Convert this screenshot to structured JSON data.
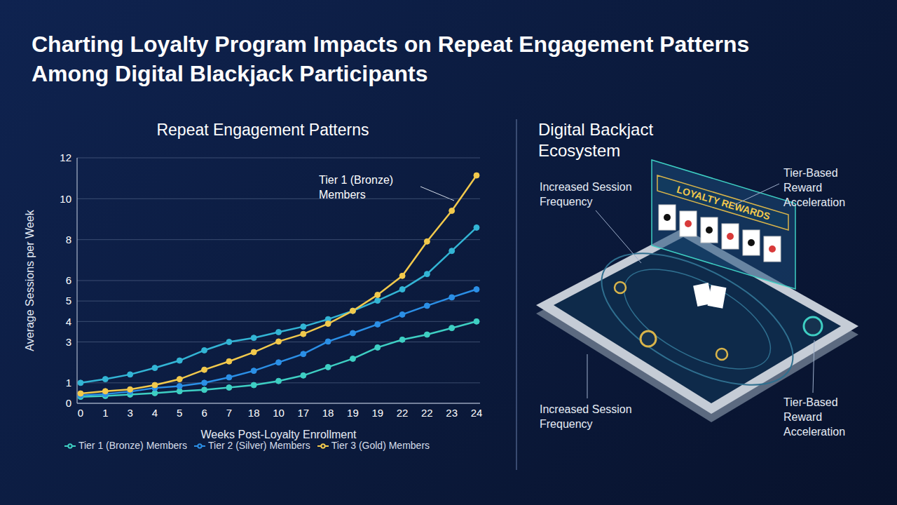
{
  "title": "Charting Loyalty Program Impacts on Repeat Engagement Patterns Among Digital Blackjack Participants",
  "chart_data": {
    "type": "line",
    "title": "Repeat Engagement Patterns",
    "x_label": "Weeks Post-Loyalty Enrollment",
    "y_label": "Average Sessions per Week",
    "categories": [
      "0",
      "1",
      "3",
      "4",
      "5",
      "6",
      "7",
      "18",
      "10",
      "17",
      "18",
      "19",
      "19",
      "22",
      "22",
      "23",
      "24"
    ],
    "series": [
      {
        "color": "#33b5d5",
        "marker": "circle",
        "values": [
          1.0,
          1.18,
          1.41,
          1.73,
          2.09,
          2.59,
          3.0,
          3.2,
          3.48,
          3.75,
          4.11,
          4.52,
          5.02,
          5.57,
          6.32,
          7.45,
          8.59
        ]
      },
      {
        "name": "Tier 1 (Bronze) Members",
        "color": "#3ecfc3",
        "marker": "circle",
        "values": [
          0.32,
          0.36,
          0.43,
          0.5,
          0.59,
          0.66,
          0.77,
          0.89,
          1.09,
          1.36,
          1.77,
          2.18,
          2.73,
          3.11,
          3.36,
          3.68,
          4.0
        ]
      },
      {
        "name": "Tier 2 (Silver) Members",
        "color": "#2b8fe6",
        "marker": "circle",
        "values": [
          0.39,
          0.45,
          0.57,
          0.75,
          0.84,
          1.0,
          1.27,
          1.59,
          2.0,
          2.41,
          3.02,
          3.43,
          3.86,
          4.34,
          4.77,
          5.18,
          5.57
        ]
      },
      {
        "name": "Tier 3 (Gold) Members",
        "color": "#f2c94c",
        "marker": "circle",
        "values": [
          0.48,
          0.59,
          0.68,
          0.89,
          1.18,
          1.64,
          2.05,
          2.5,
          3.02,
          3.39,
          3.89,
          4.52,
          5.3,
          6.23,
          7.91,
          9.41,
          11.14
        ]
      }
    ],
    "ylim": [
      0,
      12
    ],
    "yticks": [
      0,
      1,
      3,
      4,
      5,
      6,
      8,
      10,
      12
    ],
    "grid": true,
    "legend": "bottom",
    "annotations": [
      {
        "text": "Tier 1 (Bronze) Members"
      }
    ]
  },
  "diagram": {
    "title": "Digital Backjact Ecosystem",
    "screen_label": "LOYALTY REWARDS",
    "labels": [
      "Increased Session Frequency",
      "Tier-Based Reward Acceleration",
      "Increased Session Frequency",
      "Tier-Based Reward Acceleration"
    ]
  }
}
